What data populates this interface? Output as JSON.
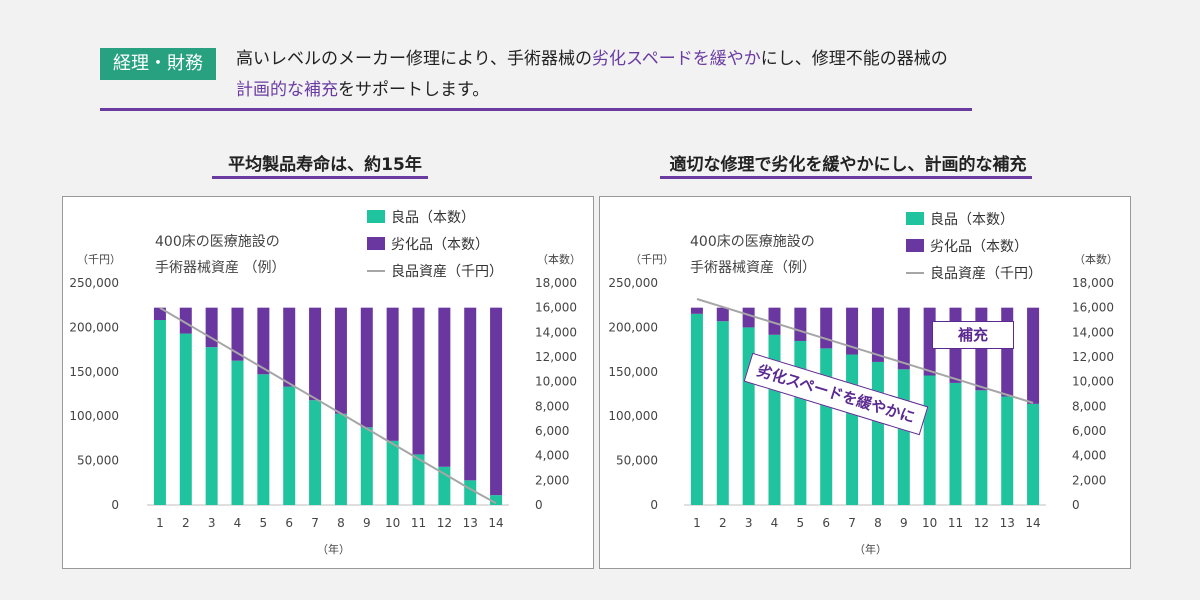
{
  "header": {
    "tag": "経理・財務",
    "line1_a": "高いレベルのメーカー修理により、手術器械の",
    "line1_hl": "劣化スペードを緩やか",
    "line1_b": "にし、修理不能の器械の",
    "line2_hl": "計画的な補充",
    "line2_b": "をサポートします。"
  },
  "left": {
    "subtitle": "平均製品寿命は、約15年",
    "note_line1": "400床の医療施設の",
    "note_line2": "手術器械資産 （例）"
  },
  "right": {
    "subtitle": "適切な修理で劣化を緩やかにし、計画的な補充",
    "note_line1": "400床の医療施設の",
    "note_line2": "手術器械資産（例）",
    "annotation_replenish": "補充",
    "annotation_slowdown": "劣化スペードを緩やかに"
  },
  "legend": {
    "good": "良品（本数）",
    "bad": "劣化品（本数）",
    "asset": "良品資産（千円）"
  },
  "axis": {
    "left_unit": "（千円）",
    "right_unit": "（本数）",
    "x_unit": "（年）"
  },
  "colors": {
    "good": "#1fc39e",
    "bad": "#6a36a0",
    "asset_line": "#a6a6a6",
    "accent": "#6a3ca2",
    "tag": "#27a17f"
  },
  "chart_data": [
    {
      "type": "bar",
      "stacked": true,
      "title": "平均製品寿命は、約15年",
      "categories": [
        "1",
        "2",
        "3",
        "4",
        "5",
        "6",
        "7",
        "8",
        "9",
        "10",
        "11",
        "12",
        "13",
        "14"
      ],
      "y_left": {
        "ticks": [
          0,
          50000,
          100000,
          150000,
          200000,
          250000
        ],
        "tick_labels": [
          "0",
          "50,000",
          "100,000",
          "150,000",
          "200,000",
          "250,000"
        ],
        "ylim": [
          0,
          250000
        ]
      },
      "y_right": {
        "ticks": [
          0,
          2000,
          4000,
          6000,
          8000,
          10000,
          12000,
          14000,
          16000,
          18000
        ],
        "tick_labels": [
          "0",
          "2,000",
          "4,000",
          "6,000",
          "8,000",
          "10,000",
          "12,000",
          "14,000",
          "16,000",
          "18,000"
        ],
        "ylim": [
          0,
          18000
        ]
      },
      "series": [
        {
          "name": "良品（本数）",
          "axis": "right",
          "values": [
            15000,
            13900,
            12800,
            11700,
            10600,
            9600,
            8500,
            7400,
            6300,
            5200,
            4100,
            3100,
            2000,
            800
          ]
        },
        {
          "name": "劣化品（本数）",
          "axis": "right",
          "values": [
            1000,
            2100,
            3200,
            4300,
            5400,
            6400,
            7500,
            8600,
            9700,
            10800,
            11900,
            12900,
            14000,
            15200
          ]
        },
        {
          "name": "良品資産（千円）",
          "type": "line",
          "axis": "left",
          "values": [
            222000,
            205000,
            188000,
            171000,
            154000,
            137000,
            120000,
            103000,
            86000,
            69000,
            52000,
            35000,
            18000,
            2000
          ]
        }
      ]
    },
    {
      "type": "bar",
      "stacked": true,
      "title": "適切な修理で劣化を緩やかにし、計画的な補充",
      "categories": [
        "1",
        "2",
        "3",
        "4",
        "5",
        "6",
        "7",
        "8",
        "9",
        "10",
        "11",
        "12",
        "13",
        "14"
      ],
      "y_left": {
        "ticks": [
          0,
          50000,
          100000,
          150000,
          200000,
          250000
        ],
        "tick_labels": [
          "0",
          "50,000",
          "100,000",
          "150,000",
          "200,000",
          "250,000"
        ],
        "ylim": [
          0,
          250000
        ]
      },
      "y_right": {
        "ticks": [
          0,
          2000,
          4000,
          6000,
          8000,
          10000,
          12000,
          14000,
          16000,
          18000
        ],
        "tick_labels": [
          "0",
          "2,000",
          "4,000",
          "6,000",
          "8,000",
          "10,000",
          "12,000",
          "14,000",
          "16,000",
          "18,000"
        ],
        "ylim": [
          0,
          18000
        ]
      },
      "series": [
        {
          "name": "良品（本数）",
          "axis": "right",
          "values": [
            15500,
            14900,
            14400,
            13800,
            13300,
            12700,
            12200,
            11600,
            11000,
            10500,
            9900,
            9300,
            8800,
            8200
          ]
        },
        {
          "name": "劣化品（本数）",
          "axis": "right",
          "values": [
            500,
            1100,
            1600,
            2200,
            2700,
            3300,
            3800,
            4400,
            5000,
            5500,
            6100,
            6700,
            7200,
            7800
          ]
        },
        {
          "name": "良品資産（千円）",
          "type": "line",
          "axis": "left",
          "values": [
            232000,
            223000,
            214000,
            205000,
            196000,
            187000,
            178000,
            169000,
            160000,
            151000,
            142000,
            133000,
            124000,
            115000
          ]
        }
      ]
    }
  ]
}
